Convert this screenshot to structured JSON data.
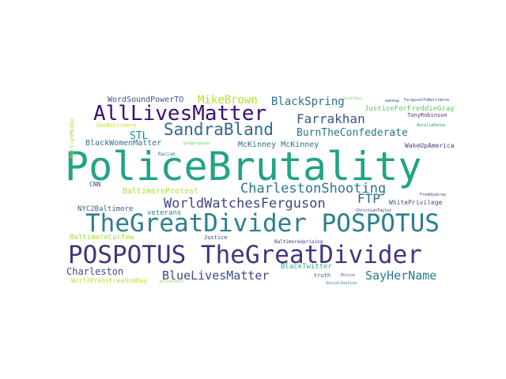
{
  "words": [
    {
      "text": "PoliceBrutality",
      "color": "#21a386"
    },
    {
      "text": "TheGreatDivider POSPOTUS",
      "color": "#2c7f8e"
    },
    {
      "text": "POSPOTUS TheGreatDivider",
      "color": "#46337e"
    },
    {
      "text": "AllLivesMatter",
      "color": "#3b0f70"
    },
    {
      "text": "SandraBland",
      "color": "#31688e"
    },
    {
      "text": "CharlestonShooting",
      "color": "#2a788e"
    },
    {
      "text": "WorldWatchesFerguson",
      "color": "#414487"
    },
    {
      "text": "Farrakhan",
      "color": "#3b528b"
    },
    {
      "text": "BlueLivesMatter",
      "color": "#3e4a89"
    },
    {
      "text": "MikeBrown",
      "color": "#b5de2b"
    },
    {
      "text": "BlackSpring",
      "color": "#2f6c8e"
    },
    {
      "text": "FTP",
      "color": "#31688e"
    },
    {
      "text": "BurnTheConfederate",
      "color": "#2a788e"
    },
    {
      "text": "SayHerName",
      "color": "#287c8e"
    },
    {
      "text": "Charleston",
      "color": "#3e4a89"
    },
    {
      "text": "STL",
      "color": "#21918c"
    },
    {
      "text": "WordSoundPowerTO",
      "color": "#3b528b"
    },
    {
      "text": "BlackWomenMatter",
      "color": "#2c728e"
    },
    {
      "text": "McKinney McKinney",
      "color": "#2e6f8e"
    },
    {
      "text": "BaltimoreProtest",
      "color": "#addc30"
    },
    {
      "text": "NYC2Baltimore",
      "color": "#355f8d"
    },
    {
      "text": "veterans",
      "color": "#25858e"
    },
    {
      "text": "BaltimoreCurfew",
      "color": "#a2da37"
    },
    {
      "text": "JusticeForFreddieGray",
      "color": "#5ec962"
    },
    {
      "text": "BlackTwitter",
      "color": "#2eb37c"
    },
    {
      "text": "WorldPressFreedomDay",
      "color": "#c2df23"
    },
    {
      "text": "WakeUpAmerica",
      "color": "#433e85"
    },
    {
      "text": "WhitePrivilege",
      "color": "#3b528b"
    },
    {
      "text": "CNN",
      "color": "#414487"
    },
    {
      "text": "OneBaltimore",
      "color": "#c8e020"
    },
    {
      "text": "TonyRobinson",
      "color": "#46337e"
    },
    {
      "text": "BaltimoreUprising",
      "color": "#472d7b"
    },
    {
      "text": "Justice",
      "color": "#414487"
    },
    {
      "text": "truth",
      "color": "#3b528b"
    },
    {
      "text": "MarilynMosby",
      "color": "#a0da39"
    },
    {
      "text": "Racism",
      "color": "#2a788e"
    },
    {
      "text": "ChristianTaylor",
      "color": "#482475"
    },
    {
      "text": "Police",
      "color": "#433e85"
    },
    {
      "text": "FergusonToBaltimore",
      "color": "#3e4989"
    },
    {
      "text": "wakeup",
      "color": "#3b528b"
    },
    {
      "text": "GregoryGunn",
      "color": "#5ec962"
    },
    {
      "text": "NataliaRenee",
      "color": "#22a884"
    },
    {
      "text": "FreddieGray",
      "color": "#46337e"
    },
    {
      "text": "ShutItDown",
      "color": "#6ccd5a"
    },
    {
      "text": "protesters",
      "color": "#7ad151"
    },
    {
      "text": "SocialJustice",
      "color": "#2a788e"
    }
  ]
}
